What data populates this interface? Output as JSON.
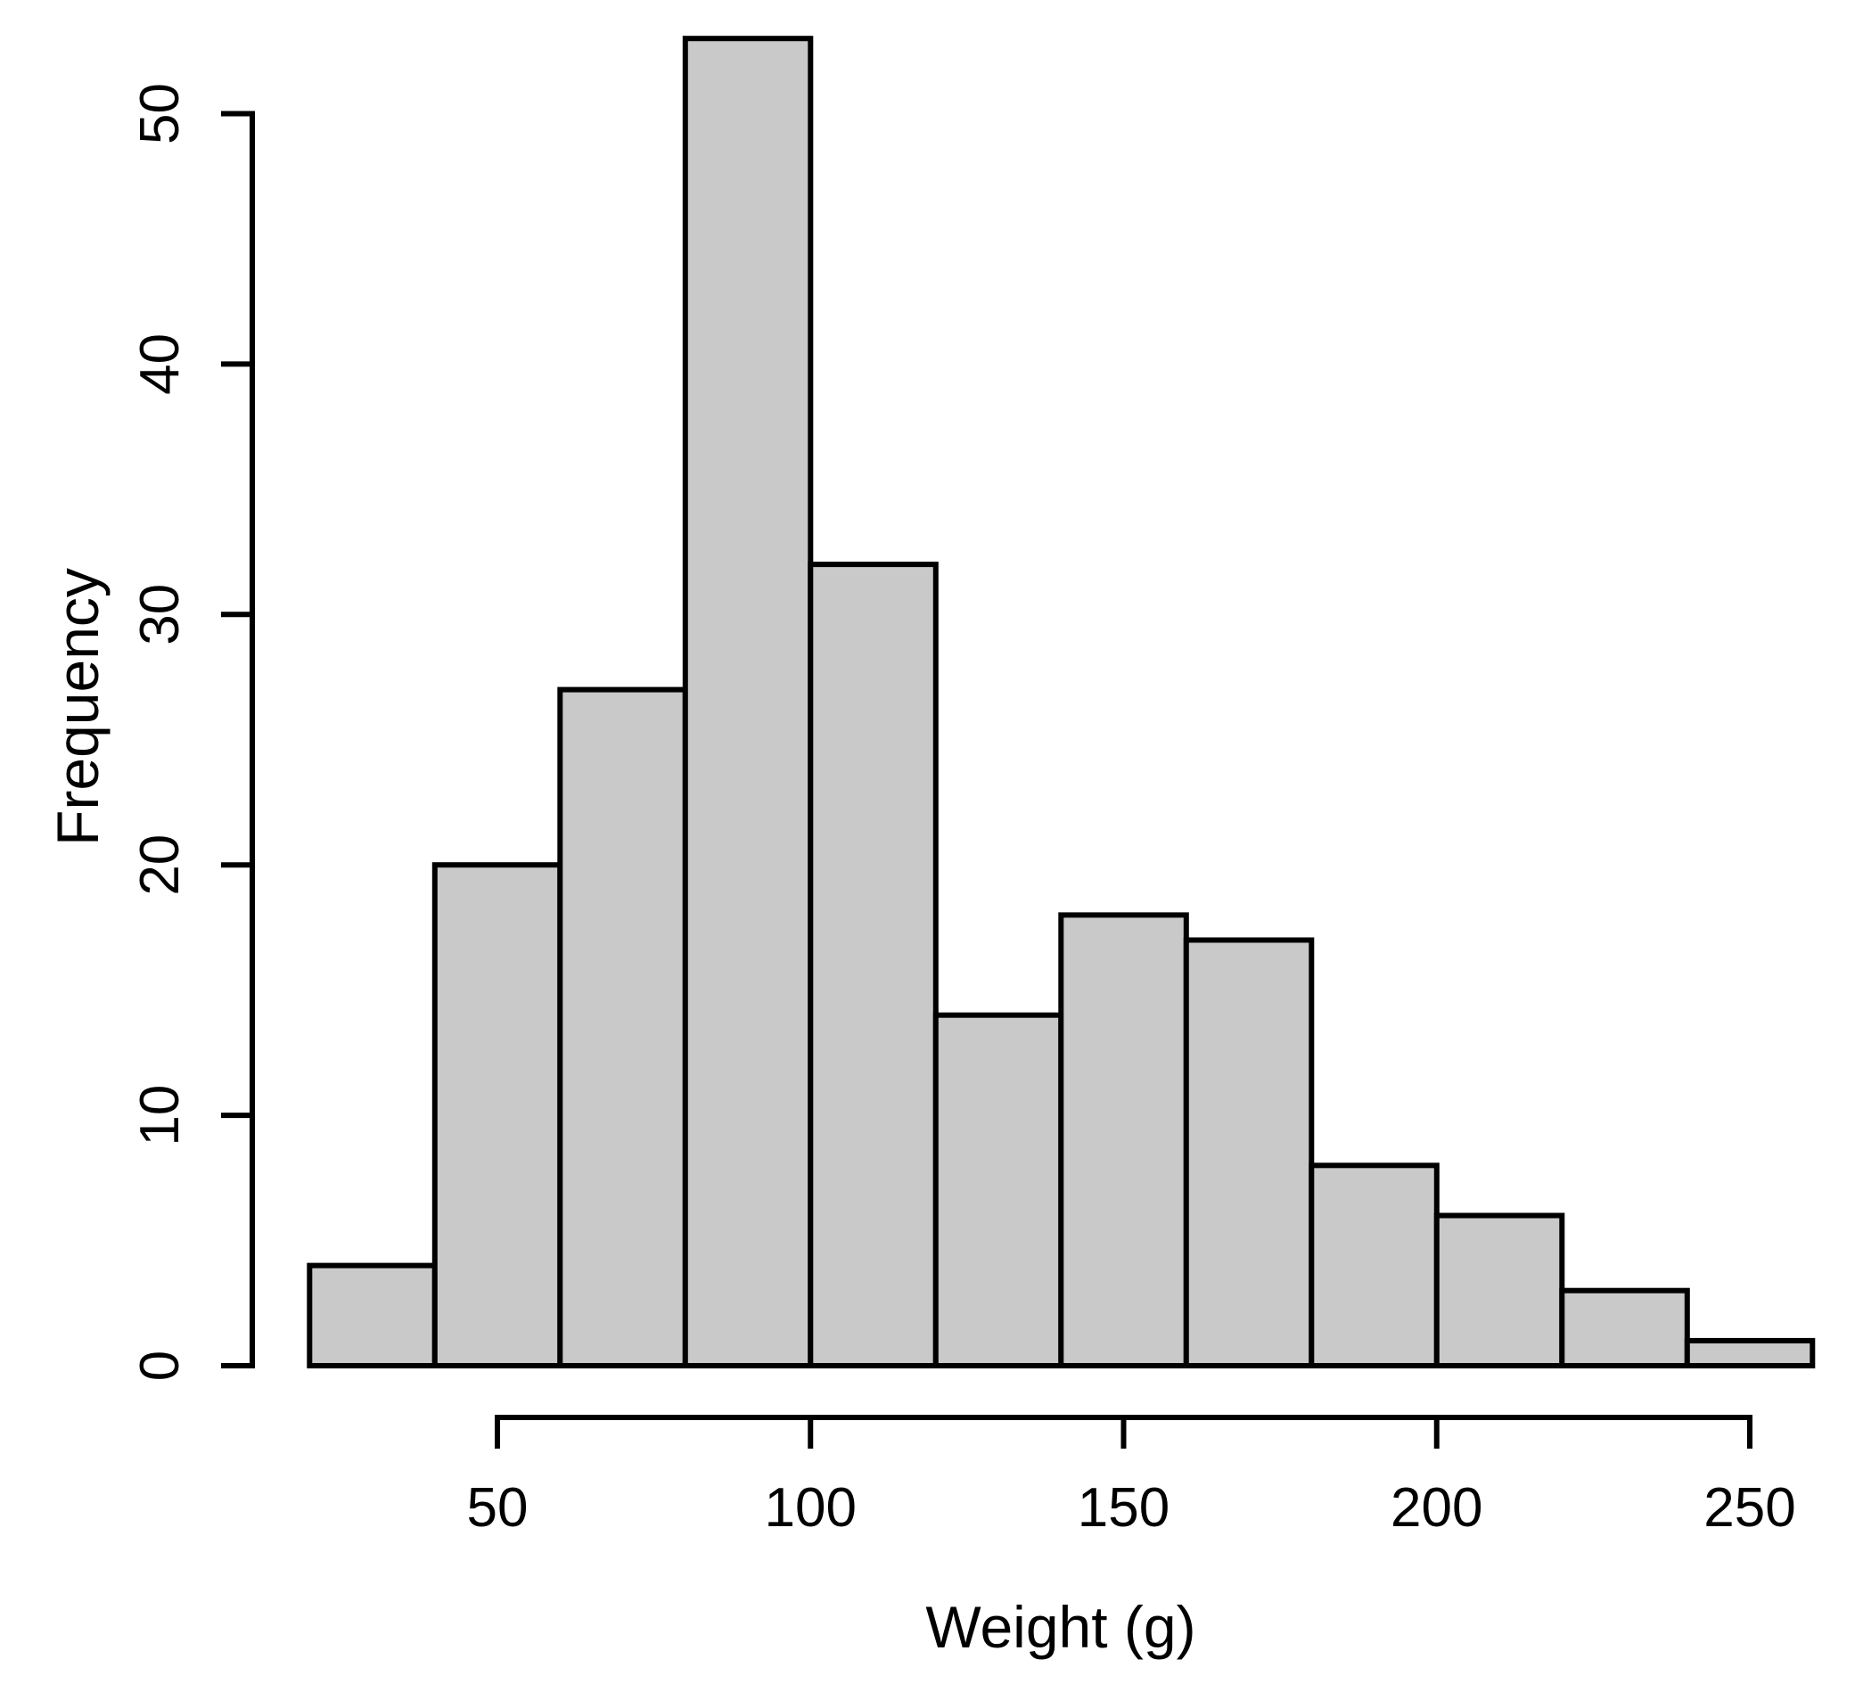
{
  "chart_data": {
    "type": "bar",
    "subtype": "histogram",
    "title": "",
    "xlabel": "Weight (g)",
    "ylabel": "Frequency",
    "bin_start": 20,
    "bin_width": 20,
    "bin_edges": [
      20,
      40,
      60,
      80,
      100,
      120,
      140,
      160,
      180,
      200,
      220,
      240,
      260
    ],
    "frequencies": [
      4,
      20,
      27,
      53,
      32,
      14,
      18,
      17,
      8,
      6,
      3,
      1
    ],
    "x_ticks": [
      50,
      100,
      150,
      200,
      250
    ],
    "y_ticks": [
      0,
      10,
      20,
      30,
      40,
      50
    ],
    "xlim": [
      20,
      260
    ],
    "ylim": [
      0,
      53
    ],
    "grid": false,
    "legend": null
  },
  "colors": {
    "bar_fill": "#c9c9c9",
    "bar_stroke": "#000000",
    "axis": "#000000",
    "text": "#000000",
    "background": "#ffffff"
  }
}
